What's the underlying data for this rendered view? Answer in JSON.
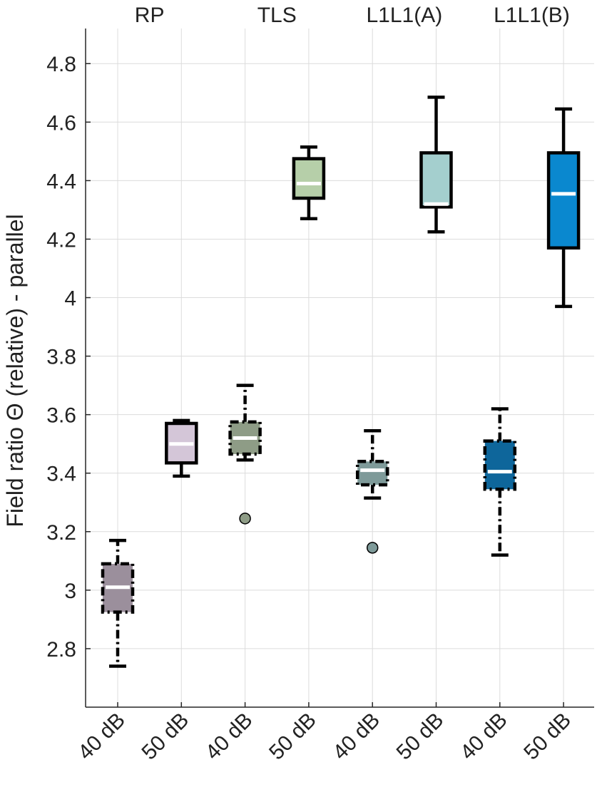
{
  "chart_data": {
    "type": "box",
    "ylabel": "Field ratio Θ (relative) - parallel",
    "ylim": [
      2.6,
      4.92
    ],
    "yticks": [
      2.8,
      3,
      3.2,
      3.4,
      3.6,
      3.8,
      4,
      4.2,
      4.4,
      4.6,
      4.8
    ],
    "ytick_labels": [
      "2.8",
      "3",
      "3.2",
      "3.4",
      "3.6",
      "3.8",
      "4",
      "4.2",
      "4.4",
      "4.6",
      "4.8"
    ],
    "grid": true,
    "group_labels": [
      "RP",
      "TLS",
      "L1L1(A)",
      "L1L1(B)"
    ],
    "categories": [
      "40 dB",
      "50 dB",
      "40 dB",
      "50 dB",
      "40 dB",
      "50 dB",
      "40 dB",
      "50 dB"
    ],
    "boxes": [
      {
        "group": "RP",
        "level": "40 dB",
        "whisker_low": 2.74,
        "q1": 2.925,
        "median": 3.01,
        "q3": 3.09,
        "whisker_high": 3.17,
        "outliers": [],
        "color": "#9B8F9C",
        "line_style": "dashdot"
      },
      {
        "group": "RP",
        "level": "50 dB",
        "whisker_low": 3.39,
        "q1": 3.435,
        "median": 3.5,
        "q3": 3.57,
        "whisker_high": 3.58,
        "outliers": [],
        "color": "#D4C6D8",
        "line_style": "solid"
      },
      {
        "group": "TLS",
        "level": "40 dB",
        "whisker_low": 3.445,
        "q1": 3.465,
        "median": 3.52,
        "q3": 3.575,
        "whisker_high": 3.7,
        "outliers": [
          3.245
        ],
        "color": "#8E9C86",
        "line_style": "dashdot"
      },
      {
        "group": "TLS",
        "level": "50 dB",
        "whisker_low": 4.27,
        "q1": 4.34,
        "median": 4.39,
        "q3": 4.475,
        "whisker_high": 4.515,
        "outliers": [],
        "color": "#B6CFA9",
        "line_style": "solid"
      },
      {
        "group": "L1L1(A)",
        "level": "40 dB",
        "whisker_low": 3.315,
        "q1": 3.36,
        "median": 3.41,
        "q3": 3.44,
        "whisker_high": 3.545,
        "outliers": [
          3.145
        ],
        "color": "#7E9A99",
        "line_style": "dashdot"
      },
      {
        "group": "L1L1(A)",
        "level": "50 dB",
        "whisker_low": 4.225,
        "q1": 4.31,
        "median": 4.32,
        "q3": 4.495,
        "whisker_high": 4.685,
        "outliers": [],
        "color": "#A4CFCE",
        "line_style": "solid"
      },
      {
        "group": "L1L1(B)",
        "level": "40 dB",
        "whisker_low": 3.12,
        "q1": 3.345,
        "median": 3.405,
        "q3": 3.51,
        "whisker_high": 3.62,
        "outliers": [],
        "color": "#0E669B",
        "line_style": "dashdot"
      },
      {
        "group": "L1L1(B)",
        "level": "50 dB",
        "whisker_low": 3.97,
        "q1": 4.17,
        "median": 4.355,
        "q3": 4.495,
        "whisker_high": 4.645,
        "outliers": [],
        "color": "#0A88CF",
        "line_style": "solid"
      }
    ]
  }
}
